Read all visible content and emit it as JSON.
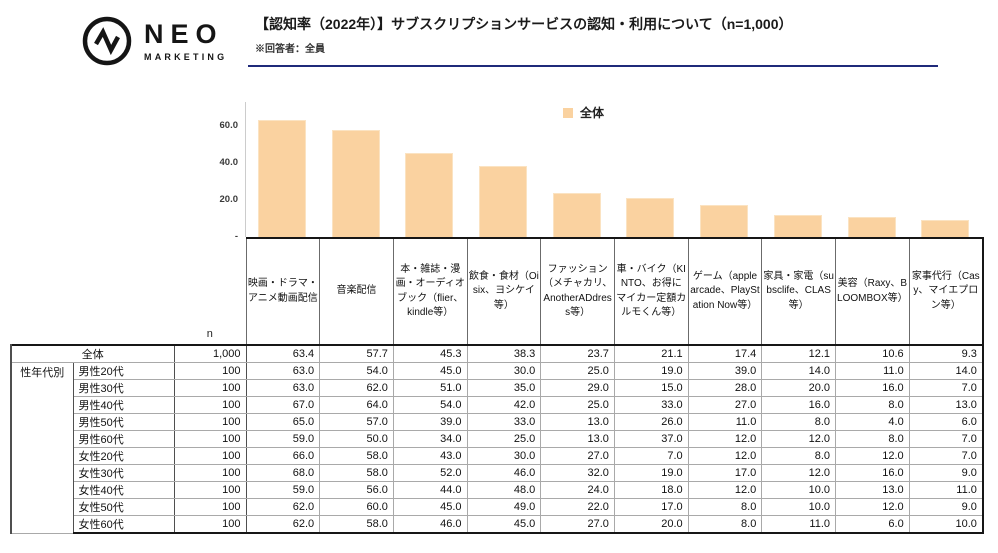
{
  "brand": {
    "name_top": "NEO",
    "name_bottom": "MARKETING"
  },
  "header": {
    "title": "【認知率（2022年）】サブスクリプションサービスの認知・利用について（n=1,000）",
    "note": "※回答者：全員",
    "underline_color": "#1f2a7a"
  },
  "chart_data": {
    "type": "bar",
    "title": "【認知率（2022年）】サブスクリプションサービスの認知・利用について（n=1,000）",
    "legend": [
      {
        "label": "全体",
        "color": "#fad2a0"
      }
    ],
    "legend_position": "top-right",
    "grid": false,
    "bar_color": "#fad2a0",
    "bar_edge_color": "#fbe3c2",
    "categories": [
      "映画・ドラマ・アニメ動画配信",
      "音楽配信",
      "本・雑誌・漫画・オーディオブック（flier、kindle等）",
      "飲食・食材（Oisix、ヨシケイ等）",
      "ファッション（メチャカリ、AnotherADdress等）",
      "車・バイク（KINTO、お得にマイカー定額カルモくん等）",
      "ゲーム（apple arcade、PlayStation Now等）",
      "家具・家電（subsclife、CLAS等）",
      "美容（Raxy、BLOOMBOX等）",
      "家事代行（Casy、マイエプロン等）"
    ],
    "values": [
      63.4,
      57.7,
      45.3,
      38.3,
      23.7,
      21.1,
      17.4,
      12.1,
      10.6,
      9.3
    ],
    "ylim": [
      0,
      70
    ],
    "y_ticks": [
      {
        "label": "60.0",
        "value": 60
      },
      {
        "label": "40.0",
        "value": 40
      },
      {
        "label": "20.0",
        "value": 20
      },
      {
        "label": "-",
        "value": 0
      }
    ]
  },
  "table": {
    "n_header": "n",
    "col_headers": [
      "映画・ドラマ・アニメ動画配信",
      "音楽配信",
      "本・雑誌・漫画・オーディオブック（flier、kindle等）",
      "飲食・食材（Oisix、ヨシケイ等）",
      "ファッション（メチャカリ、AnotherADdress等）",
      "車・バイク（KINTO、お得にマイカー定額カルモくん等）",
      "ゲーム（apple arcade、PlayStation Now等）",
      "家具・家電（subsclife、CLAS等）",
      "美容（Raxy、BLOOMBOX等）",
      "家事代行（Casy、マイエプロン等）"
    ],
    "rows": [
      {
        "group": "",
        "label": "全体",
        "n": "1,000",
        "values": [
          "63.4",
          "57.7",
          "45.3",
          "38.3",
          "23.7",
          "21.1",
          "17.4",
          "12.1",
          "10.6",
          "9.3"
        ]
      },
      {
        "group": "性年代別",
        "label": "男性20代",
        "n": "100",
        "values": [
          "63.0",
          "54.0",
          "45.0",
          "30.0",
          "25.0",
          "19.0",
          "39.0",
          "14.0",
          "11.0",
          "14.0"
        ]
      },
      {
        "group": "性年代別",
        "label": "男性30代",
        "n": "100",
        "values": [
          "63.0",
          "62.0",
          "51.0",
          "35.0",
          "29.0",
          "15.0",
          "28.0",
          "20.0",
          "16.0",
          "7.0"
        ]
      },
      {
        "group": "性年代別",
        "label": "男性40代",
        "n": "100",
        "values": [
          "67.0",
          "64.0",
          "54.0",
          "42.0",
          "25.0",
          "33.0",
          "27.0",
          "16.0",
          "8.0",
          "13.0"
        ]
      },
      {
        "group": "性年代別",
        "label": "男性50代",
        "n": "100",
        "values": [
          "65.0",
          "57.0",
          "39.0",
          "33.0",
          "13.0",
          "26.0",
          "11.0",
          "8.0",
          "4.0",
          "6.0"
        ]
      },
      {
        "group": "性年代別",
        "label": "男性60代",
        "n": "100",
        "values": [
          "59.0",
          "50.0",
          "34.0",
          "25.0",
          "13.0",
          "37.0",
          "12.0",
          "12.0",
          "8.0",
          "7.0"
        ]
      },
      {
        "group": "性年代別",
        "label": "女性20代",
        "n": "100",
        "values": [
          "66.0",
          "58.0",
          "43.0",
          "30.0",
          "27.0",
          "7.0",
          "12.0",
          "8.0",
          "12.0",
          "7.0"
        ]
      },
      {
        "group": "性年代別",
        "label": "女性30代",
        "n": "100",
        "values": [
          "68.0",
          "58.0",
          "52.0",
          "46.0",
          "32.0",
          "19.0",
          "17.0",
          "12.0",
          "16.0",
          "9.0"
        ]
      },
      {
        "group": "性年代別",
        "label": "女性40代",
        "n": "100",
        "values": [
          "59.0",
          "56.0",
          "44.0",
          "48.0",
          "24.0",
          "18.0",
          "12.0",
          "10.0",
          "13.0",
          "11.0"
        ]
      },
      {
        "group": "性年代別",
        "label": "女性50代",
        "n": "100",
        "values": [
          "62.0",
          "60.0",
          "45.0",
          "49.0",
          "22.0",
          "17.0",
          "8.0",
          "10.0",
          "12.0",
          "9.0"
        ]
      },
      {
        "group": "性年代別",
        "label": "女性60代",
        "n": "100",
        "values": [
          "62.0",
          "58.0",
          "46.0",
          "45.0",
          "27.0",
          "20.0",
          "8.0",
          "11.0",
          "6.0",
          "10.0"
        ]
      }
    ]
  }
}
